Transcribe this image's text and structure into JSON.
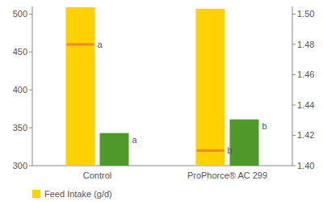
{
  "chart_data": {
    "type": "bar",
    "categories": [
      "Control",
      "ProPhorce® AC 299"
    ],
    "series": [
      {
        "name": "Feed Intake (g/d)",
        "color": "#ffd200",
        "values": [
          509,
          507
        ]
      },
      {
        "color": "#4e9a2a",
        "values": [
          343,
          361
        ],
        "letters": [
          "a",
          "b"
        ]
      },
      {
        "color": "#f08a24",
        "values": [
          1.48,
          1.41
        ],
        "axis": "y2",
        "type": "scatter",
        "marker": "dash",
        "letters": [
          "a",
          "b"
        ]
      }
    ],
    "ylim": [
      300,
      510
    ],
    "yticks": [
      300,
      350,
      400,
      450,
      500
    ],
    "y2lim": [
      1.4,
      1.505
    ],
    "y2ticks": [
      {
        "value": 1.4,
        "label": "1.40"
      },
      {
        "value": 1.42,
        "label": "1.42"
      },
      {
        "value": 1.44,
        "label": "1.44"
      },
      {
        "value": 1.46,
        "label": "1.46"
      },
      {
        "value": 1.48,
        "label": "1.48"
      },
      {
        "value": 1.5,
        "label": "1.50"
      }
    ],
    "legend": "bottom"
  }
}
